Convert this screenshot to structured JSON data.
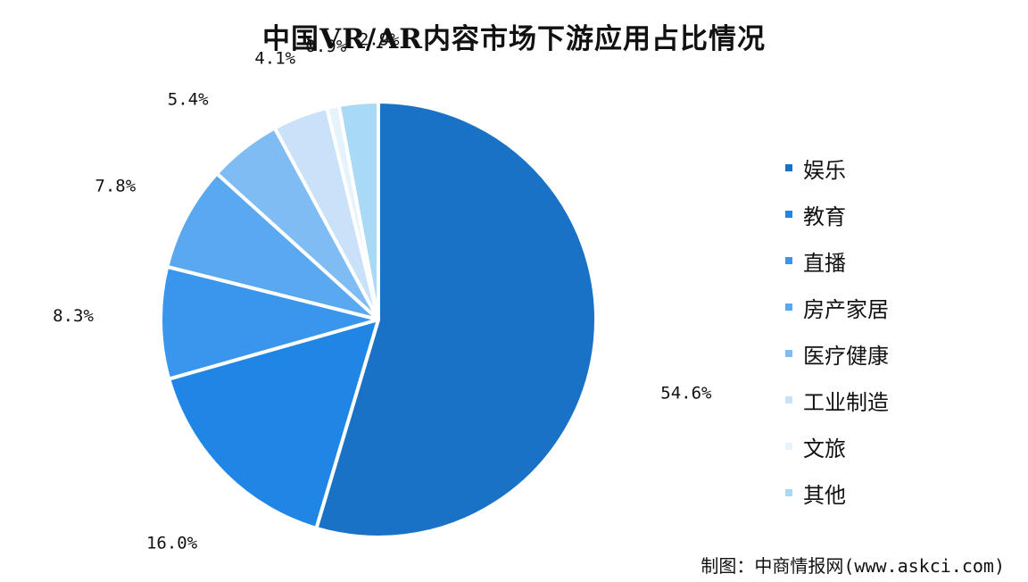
{
  "chart_data": {
    "type": "pie",
    "title": "中国VR/AR内容市场下游应用占比情况",
    "categories": [
      "娱乐",
      "教育",
      "直播",
      "房产家居",
      "医疗健康",
      "工业制造",
      "文旅",
      "其他"
    ],
    "values": [
      54.6,
      16.0,
      8.3,
      7.8,
      5.4,
      4.1,
      0.9,
      2.9
    ],
    "labels": [
      "54.6%",
      "16.0%",
      "8.3%",
      "7.8%",
      "5.4%",
      "4.1%",
      "0.9%",
      "2.9%"
    ],
    "colors": [
      "#1a72c6",
      "#1f86e6",
      "#3a95ec",
      "#5aa8ef",
      "#7fbcf3",
      "#c9e1f9",
      "#e6f2fc",
      "#a8daf6"
    ],
    "legend_position": "right"
  },
  "source": {
    "label": "制图：",
    "text": "中商情报网(www.askci.com)"
  }
}
